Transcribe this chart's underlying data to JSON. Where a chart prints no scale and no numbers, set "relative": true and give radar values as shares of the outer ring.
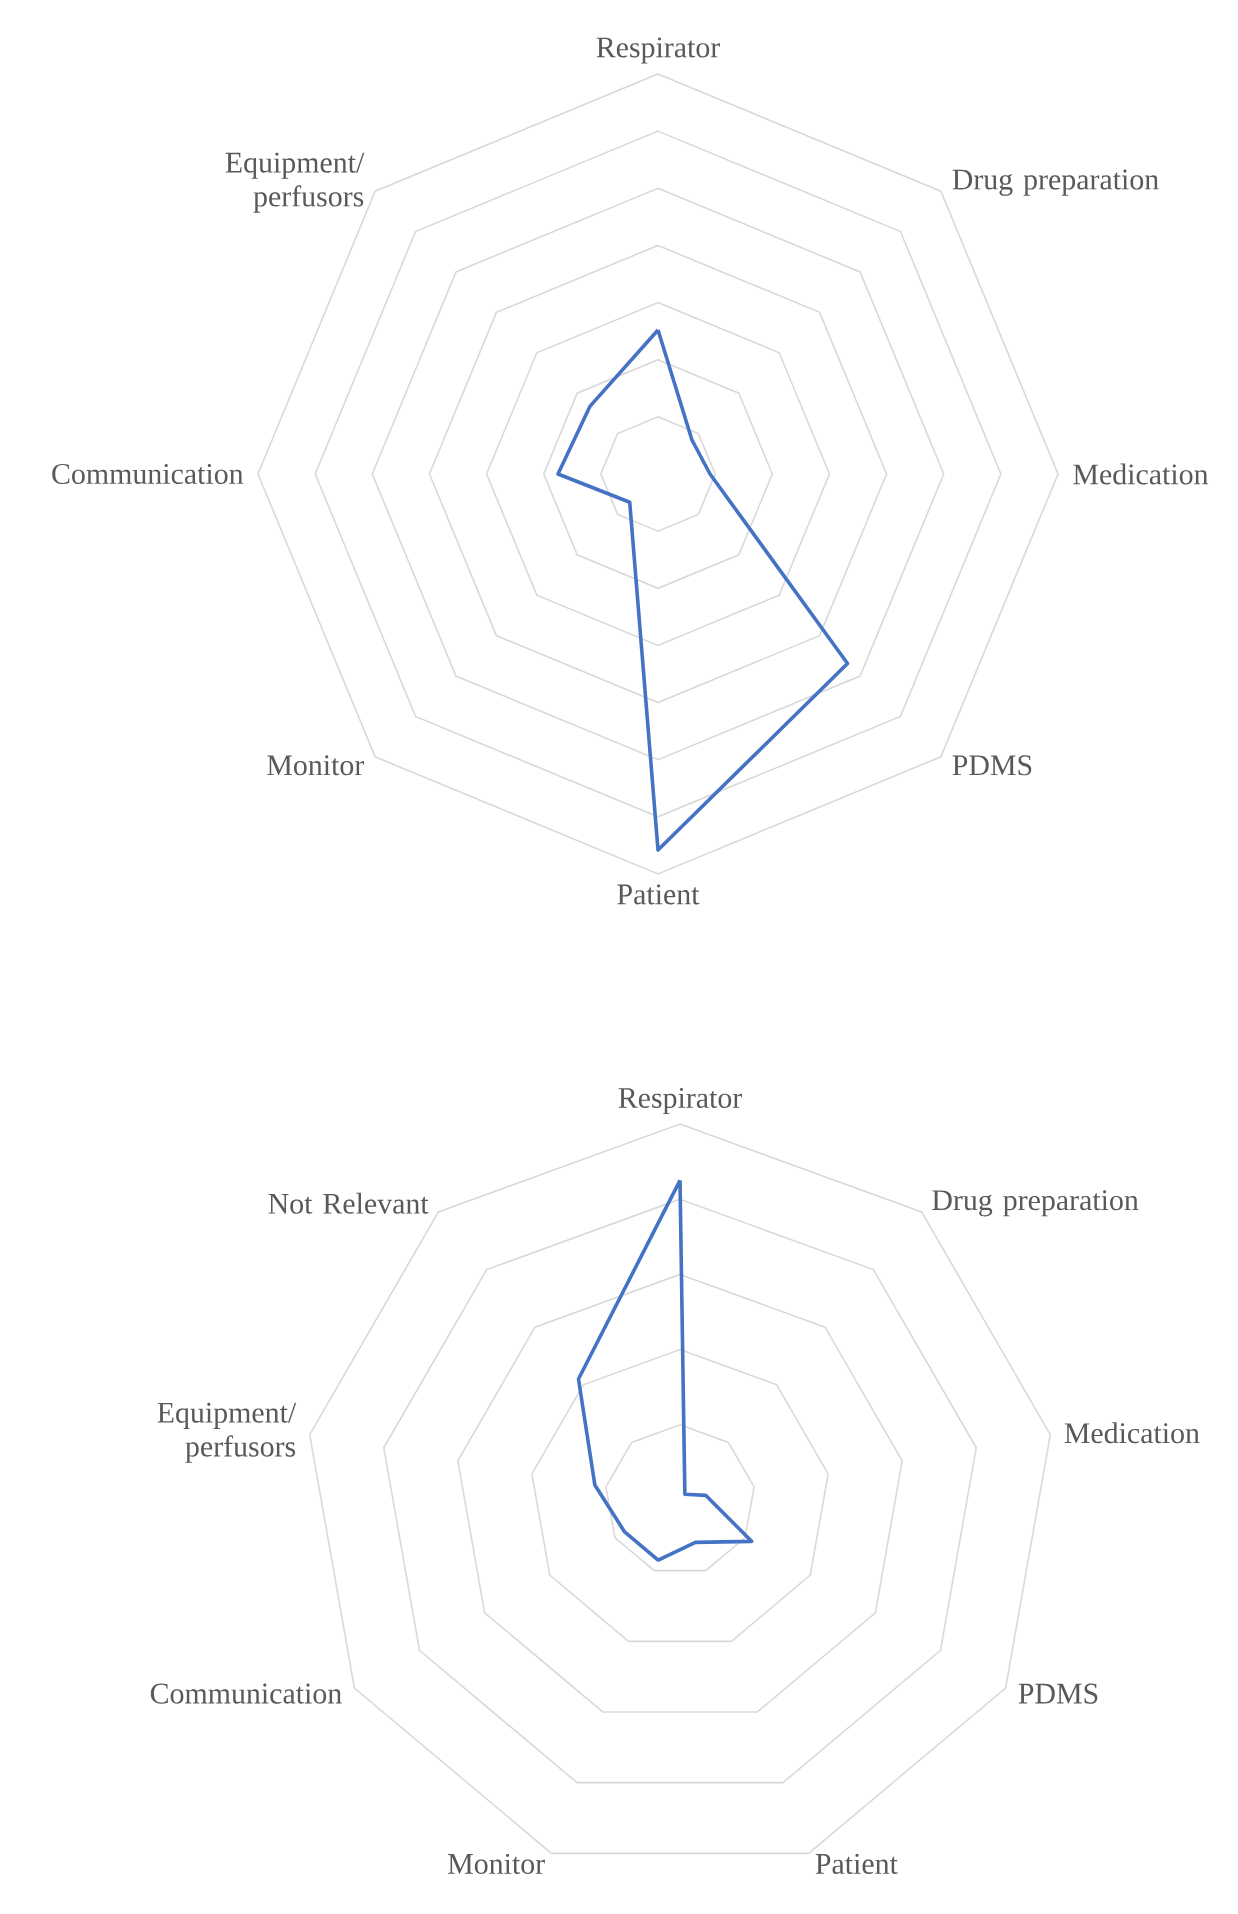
{
  "chart_data": [
    {
      "type": "radar",
      "relative": true,
      "categories": [
        "Respirator",
        "Drug preparation",
        "Medication",
        "PDMS",
        "Patient",
        "Monitor",
        "Communication",
        "Equipment/ perfusors"
      ],
      "series": [
        {
          "color": "#4472c4",
          "values": [
            0.36,
            0.12,
            0.13,
            0.67,
            0.94,
            0.1,
            0.25,
            0.24
          ]
        }
      ]
    },
    {
      "type": "radar",
      "relative": true,
      "categories": [
        "Respirator",
        "Drug preparation",
        "Medication",
        "PDMS",
        "Patient",
        "Monitor",
        "Communication",
        "Equipment/ perfusors",
        "Not Relevant"
      ],
      "series": [
        {
          "color": "#4472c4",
          "values": [
            0.85,
            0.02,
            0.07,
            0.22,
            0.12,
            0.17,
            0.17,
            0.23,
            0.42
          ]
        }
      ]
    }
  ]
}
